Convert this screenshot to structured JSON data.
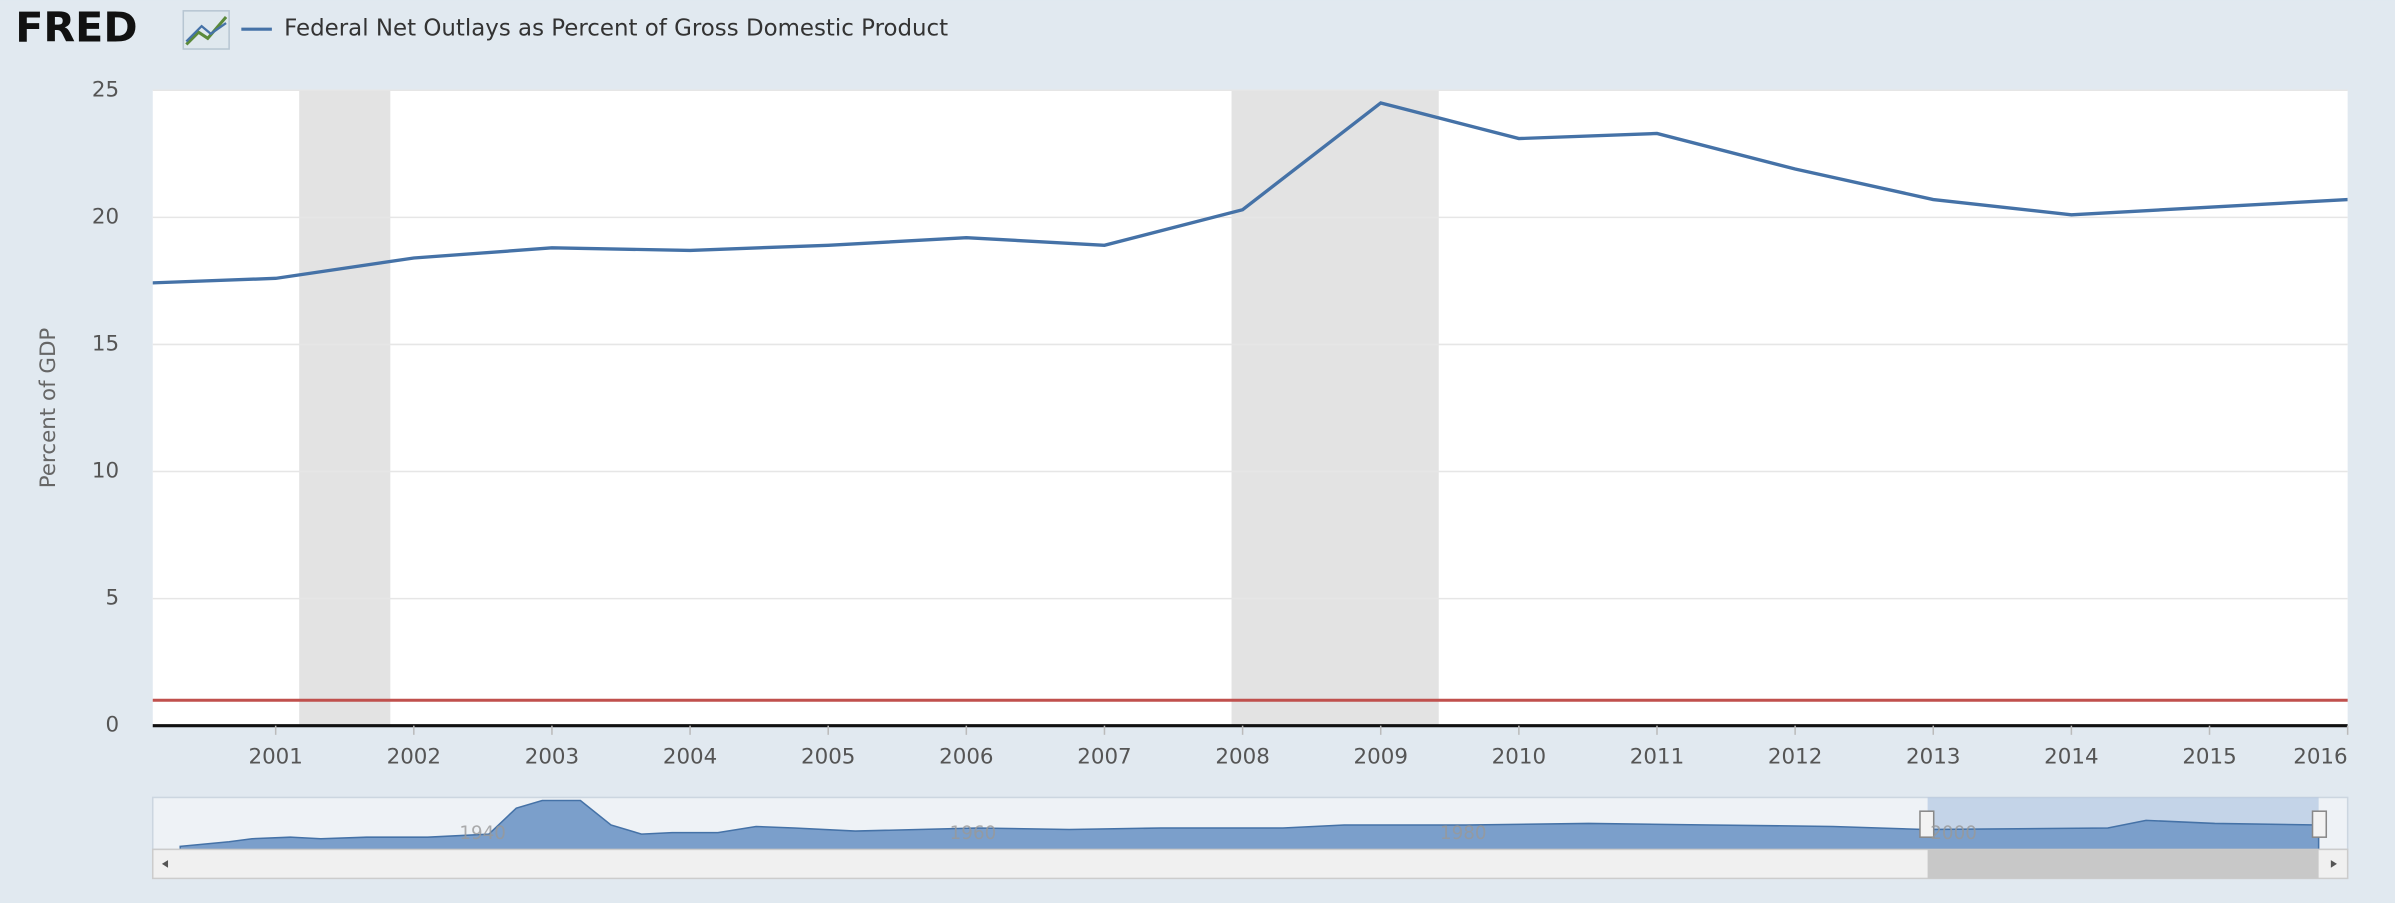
{
  "logo": "FRED",
  "chart_data": {
    "type": "line",
    "y_label": "Percent of GDP",
    "x": [
      2000,
      2001,
      2002,
      2003,
      2004,
      2005,
      2006,
      2007,
      2008,
      2009,
      2010,
      2011,
      2012,
      2013,
      2014,
      2015,
      2016
    ],
    "series": [
      {
        "name": "Federal Net Outlays as Percent of Gross Domestic Product",
        "color": "#4572a7",
        "values": [
          17.4,
          17.6,
          18.4,
          18.8,
          18.7,
          18.9,
          19.2,
          18.9,
          20.3,
          24.5,
          23.1,
          23.3,
          21.9,
          20.7,
          20.1,
          20.4,
          20.7
        ]
      }
    ],
    "xlim": [
      2000.11,
      2016
    ],
    "xticks": [
      2001,
      2002,
      2003,
      2004,
      2005,
      2006,
      2007,
      2008,
      2009,
      2010,
      2011,
      2012,
      2013,
      2014,
      2015,
      2016
    ],
    "ylim": [
      0,
      25
    ],
    "yticks": [
      0,
      5,
      10,
      15,
      20,
      25
    ],
    "grid": true,
    "recessions": [
      [
        2001.17,
        2001.83
      ],
      [
        2007.92,
        2009.42
      ]
    ],
    "recession_color": "#e3e3e3",
    "reference_line": {
      "value": 1,
      "color": "#c0504d"
    },
    "navigator_labels": [
      "1940",
      "1960",
      "1980",
      "2000"
    ]
  }
}
